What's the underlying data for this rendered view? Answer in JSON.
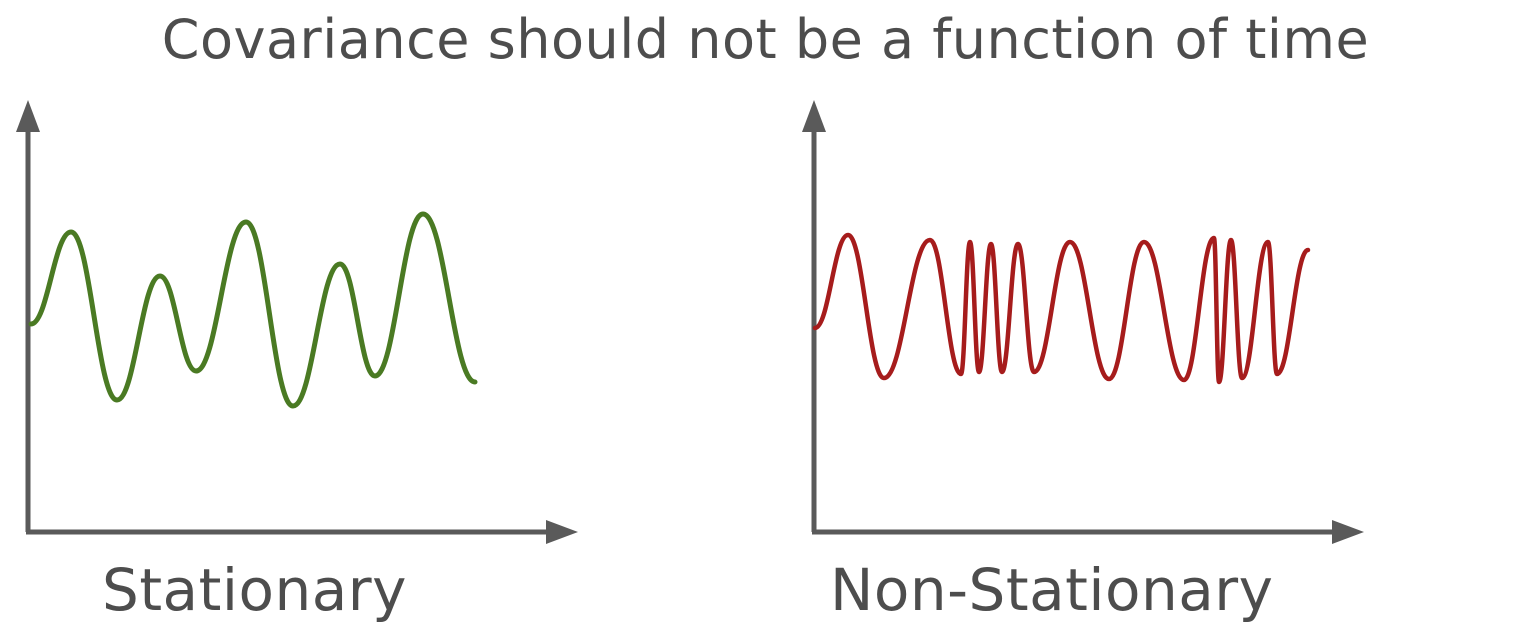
{
  "title": "Covariance should not be a function of time",
  "panels": [
    {
      "caption": "Stationary",
      "signal_color": "#4a7a23",
      "behavior": "constant frequency oscillation with varying amplitude"
    },
    {
      "caption": "Non-Stationary",
      "signal_color": "#a61c1c",
      "behavior": "oscillation frequency changes over time"
    }
  ],
  "axis_color": "#5a5a5a"
}
